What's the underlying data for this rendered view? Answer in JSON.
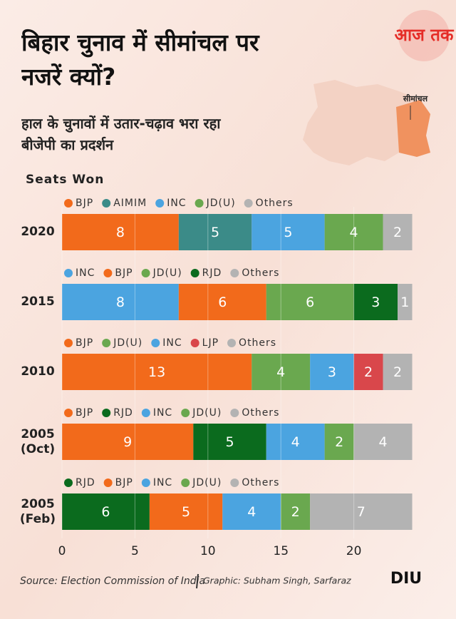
{
  "chart_data": {
    "type": "bar",
    "orientation": "horizontal",
    "stacked": true,
    "title": "बिहार चुनाव में सीमांचल पर नजरें क्यों?",
    "subtitle": "हाल के चुनावों में उतार-चढ़ाव भरा रहा बीजेपी का प्रदर्शन",
    "axis_label": "Seats Won",
    "xlim": [
      0,
      25
    ],
    "xticks": [
      0,
      5,
      10,
      15,
      20
    ],
    "grid": true,
    "groups": [
      {
        "category": "2020",
        "series": [
          {
            "name": "BJP",
            "color": "#f26a1b",
            "value": 8
          },
          {
            "name": "AIMIM",
            "color": "#3b8b88",
            "value": 5
          },
          {
            "name": "INC",
            "color": "#4ba4e0",
            "value": 5
          },
          {
            "name": "JD(U)",
            "color": "#6aa84f",
            "value": 4
          },
          {
            "name": "Others",
            "color": "#b3b3b3",
            "value": 2
          }
        ]
      },
      {
        "category": "2015",
        "series": [
          {
            "name": "INC",
            "color": "#4ba4e0",
            "value": 8
          },
          {
            "name": "BJP",
            "color": "#f26a1b",
            "value": 6
          },
          {
            "name": "JD(U)",
            "color": "#6aa84f",
            "value": 6
          },
          {
            "name": "RJD",
            "color": "#0b6b1e",
            "value": 3
          },
          {
            "name": "Others",
            "color": "#b3b3b3",
            "value": 1
          }
        ]
      },
      {
        "category": "2010",
        "series": [
          {
            "name": "BJP",
            "color": "#f26a1b",
            "value": 13
          },
          {
            "name": "JD(U)",
            "color": "#6aa84f",
            "value": 4
          },
          {
            "name": "INC",
            "color": "#4ba4e0",
            "value": 3
          },
          {
            "name": "LJP",
            "color": "#d9474b",
            "value": 2
          },
          {
            "name": "Others",
            "color": "#b3b3b3",
            "value": 2
          }
        ]
      },
      {
        "category": "2005 (Oct)",
        "series": [
          {
            "name": "BJP",
            "color": "#f26a1b",
            "value": 9
          },
          {
            "name": "RJD",
            "color": "#0b6b1e",
            "value": 5
          },
          {
            "name": "INC",
            "color": "#4ba4e0",
            "value": 4
          },
          {
            "name": "JD(U)",
            "color": "#6aa84f",
            "value": 2
          },
          {
            "name": "Others",
            "color": "#b3b3b3",
            "value": 4
          }
        ]
      },
      {
        "category": "2005 (Feb)",
        "series": [
          {
            "name": "RJD",
            "color": "#0b6b1e",
            "value": 6
          },
          {
            "name": "BJP",
            "color": "#f26a1b",
            "value": 5
          },
          {
            "name": "INC",
            "color": "#4ba4e0",
            "value": 4
          },
          {
            "name": "JD(U)",
            "color": "#6aa84f",
            "value": 2
          },
          {
            "name": "Others",
            "color": "#b3b3b3",
            "value": 7
          }
        ]
      }
    ],
    "source": "Source: Election Commission of India",
    "credit": "Graphic: Subham Singh, Sarfaraz"
  },
  "branding": {
    "logo": "आज तक",
    "map_label": "सीमांचल",
    "unit": "DIU"
  }
}
